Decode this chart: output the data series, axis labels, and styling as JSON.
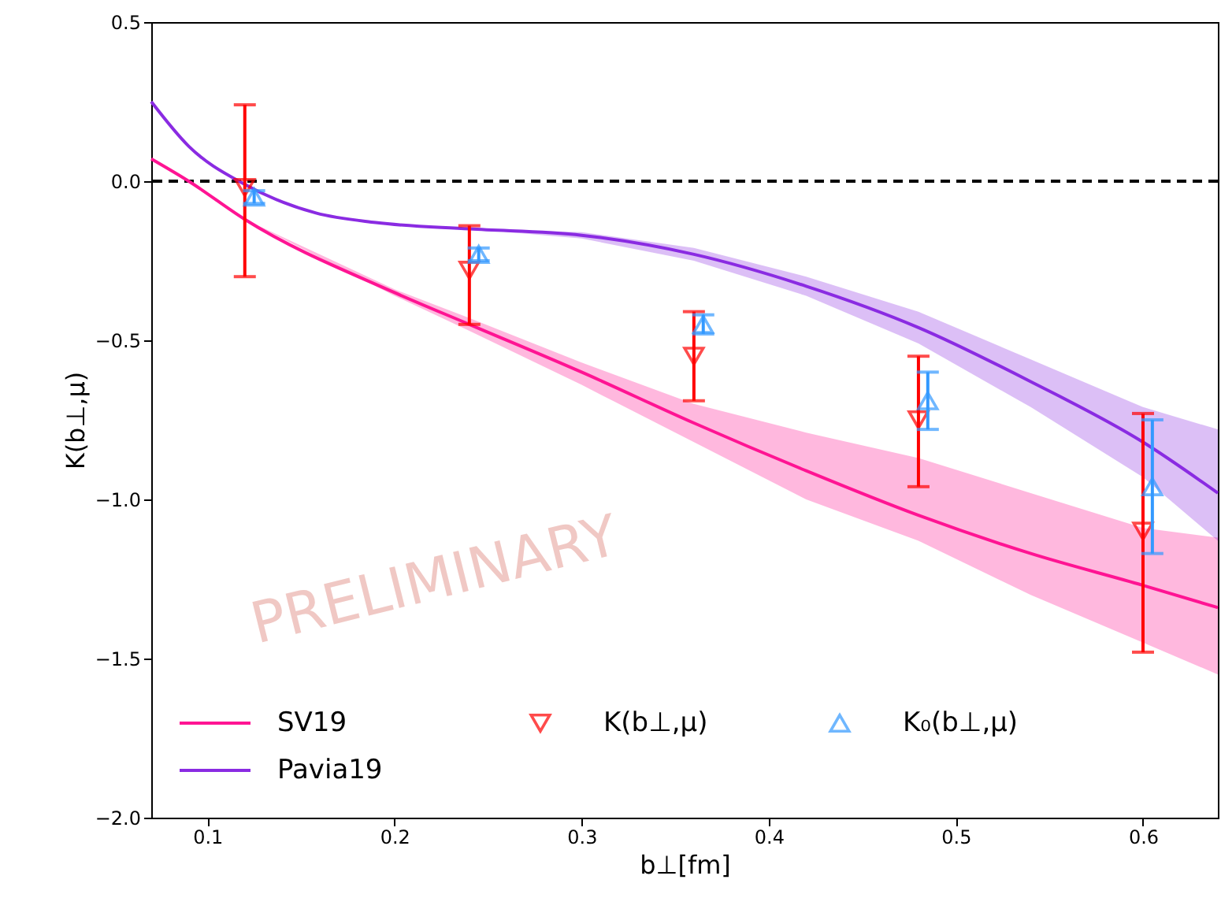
{
  "chart_data": {
    "type": "line",
    "xlabel": "b⊥[fm]",
    "ylabel": "K(b⊥,μ)",
    "xlim": [
      0.07,
      0.64
    ],
    "ylim": [
      -2.0,
      0.5
    ],
    "xticks": [
      0.1,
      0.2,
      0.3,
      0.4,
      0.5,
      0.6
    ],
    "yticks": [
      {
        "value": -2.0,
        "label": "−2.0"
      },
      {
        "value": -1.5,
        "label": "−1.5"
      },
      {
        "value": -1.0,
        "label": "−1.0"
      },
      {
        "value": -0.5,
        "label": "−0.5"
      },
      {
        "value": 0.0,
        "label": "0.0"
      },
      {
        "value": 0.5,
        "label": "0.5"
      }
    ],
    "grid": false,
    "legend": "bottom",
    "ref_lines": [
      {
        "axis": "y",
        "value": 0,
        "color": "#000000",
        "line_style": "dashed"
      }
    ],
    "annotations": [
      "PRELIMINARY"
    ],
    "series": [
      {
        "name": "SV19",
        "color": "#ff1493",
        "x": [
          0.07,
          0.09,
          0.12,
          0.2,
          0.24,
          0.3,
          0.36,
          0.42,
          0.48,
          0.54,
          0.6,
          0.64
        ],
        "values": [
          0.07,
          0.0,
          -0.12,
          -0.35,
          -0.45,
          -0.6,
          -0.76,
          -0.91,
          -1.05,
          -1.17,
          -1.27,
          -1.34
        ],
        "lower": [
          0.07,
          0.0,
          -0.12,
          -0.36,
          -0.47,
          -0.64,
          -0.82,
          -1.0,
          -1.13,
          -1.3,
          -1.45,
          -1.55
        ],
        "upper": [
          0.07,
          0.0,
          -0.12,
          -0.34,
          -0.43,
          -0.57,
          -0.7,
          -0.79,
          -0.87,
          -0.98,
          -1.09,
          -1.12
        ]
      },
      {
        "name": "Pavia19",
        "color": "#8a2be2",
        "x": [
          0.07,
          0.09,
          0.12,
          0.158,
          0.19,
          0.24,
          0.3,
          0.36,
          0.42,
          0.48,
          0.54,
          0.6,
          0.64
        ],
        "values": [
          0.25,
          0.11,
          -0.01,
          -0.1,
          -0.13,
          -0.15,
          -0.17,
          -0.23,
          -0.33,
          -0.46,
          -0.63,
          -0.82,
          -0.98
        ],
        "lower": [
          0.25,
          0.11,
          -0.01,
          -0.1,
          -0.13,
          -0.15,
          -0.18,
          -0.25,
          -0.36,
          -0.51,
          -0.71,
          -0.93,
          -1.13
        ],
        "upper": [
          0.25,
          0.11,
          -0.01,
          -0.1,
          -0.13,
          -0.15,
          -0.16,
          -0.21,
          -0.3,
          -0.41,
          -0.56,
          -0.71,
          -0.78
        ]
      },
      {
        "name": "K(b⊥,μ)",
        "type": "scatter",
        "marker": "triangle-down",
        "color": "#ff0000",
        "x": [
          0.12,
          0.24,
          0.36,
          0.48,
          0.6
        ],
        "values": [
          -0.02,
          -0.28,
          -0.55,
          -0.75,
          -1.1
        ],
        "errors": [
          [
            -0.3,
            0.24
          ],
          [
            -0.45,
            -0.14
          ],
          [
            -0.69,
            -0.41
          ],
          [
            -0.96,
            -0.55
          ],
          [
            -1.48,
            -0.73
          ]
        ]
      },
      {
        "name": "K₀(b⊥,μ)",
        "type": "scatter",
        "marker": "triangle",
        "color": "#3399ff",
        "x": [
          0.125,
          0.245,
          0.365,
          0.485,
          0.605
        ],
        "values": [
          -0.05,
          -0.23,
          -0.45,
          -0.69,
          -0.96
        ],
        "errors": [
          [
            -0.07,
            -0.03
          ],
          [
            -0.25,
            -0.21
          ],
          [
            -0.48,
            -0.42
          ],
          [
            -0.78,
            -0.6
          ],
          [
            -1.17,
            -0.75
          ]
        ]
      }
    ]
  }
}
